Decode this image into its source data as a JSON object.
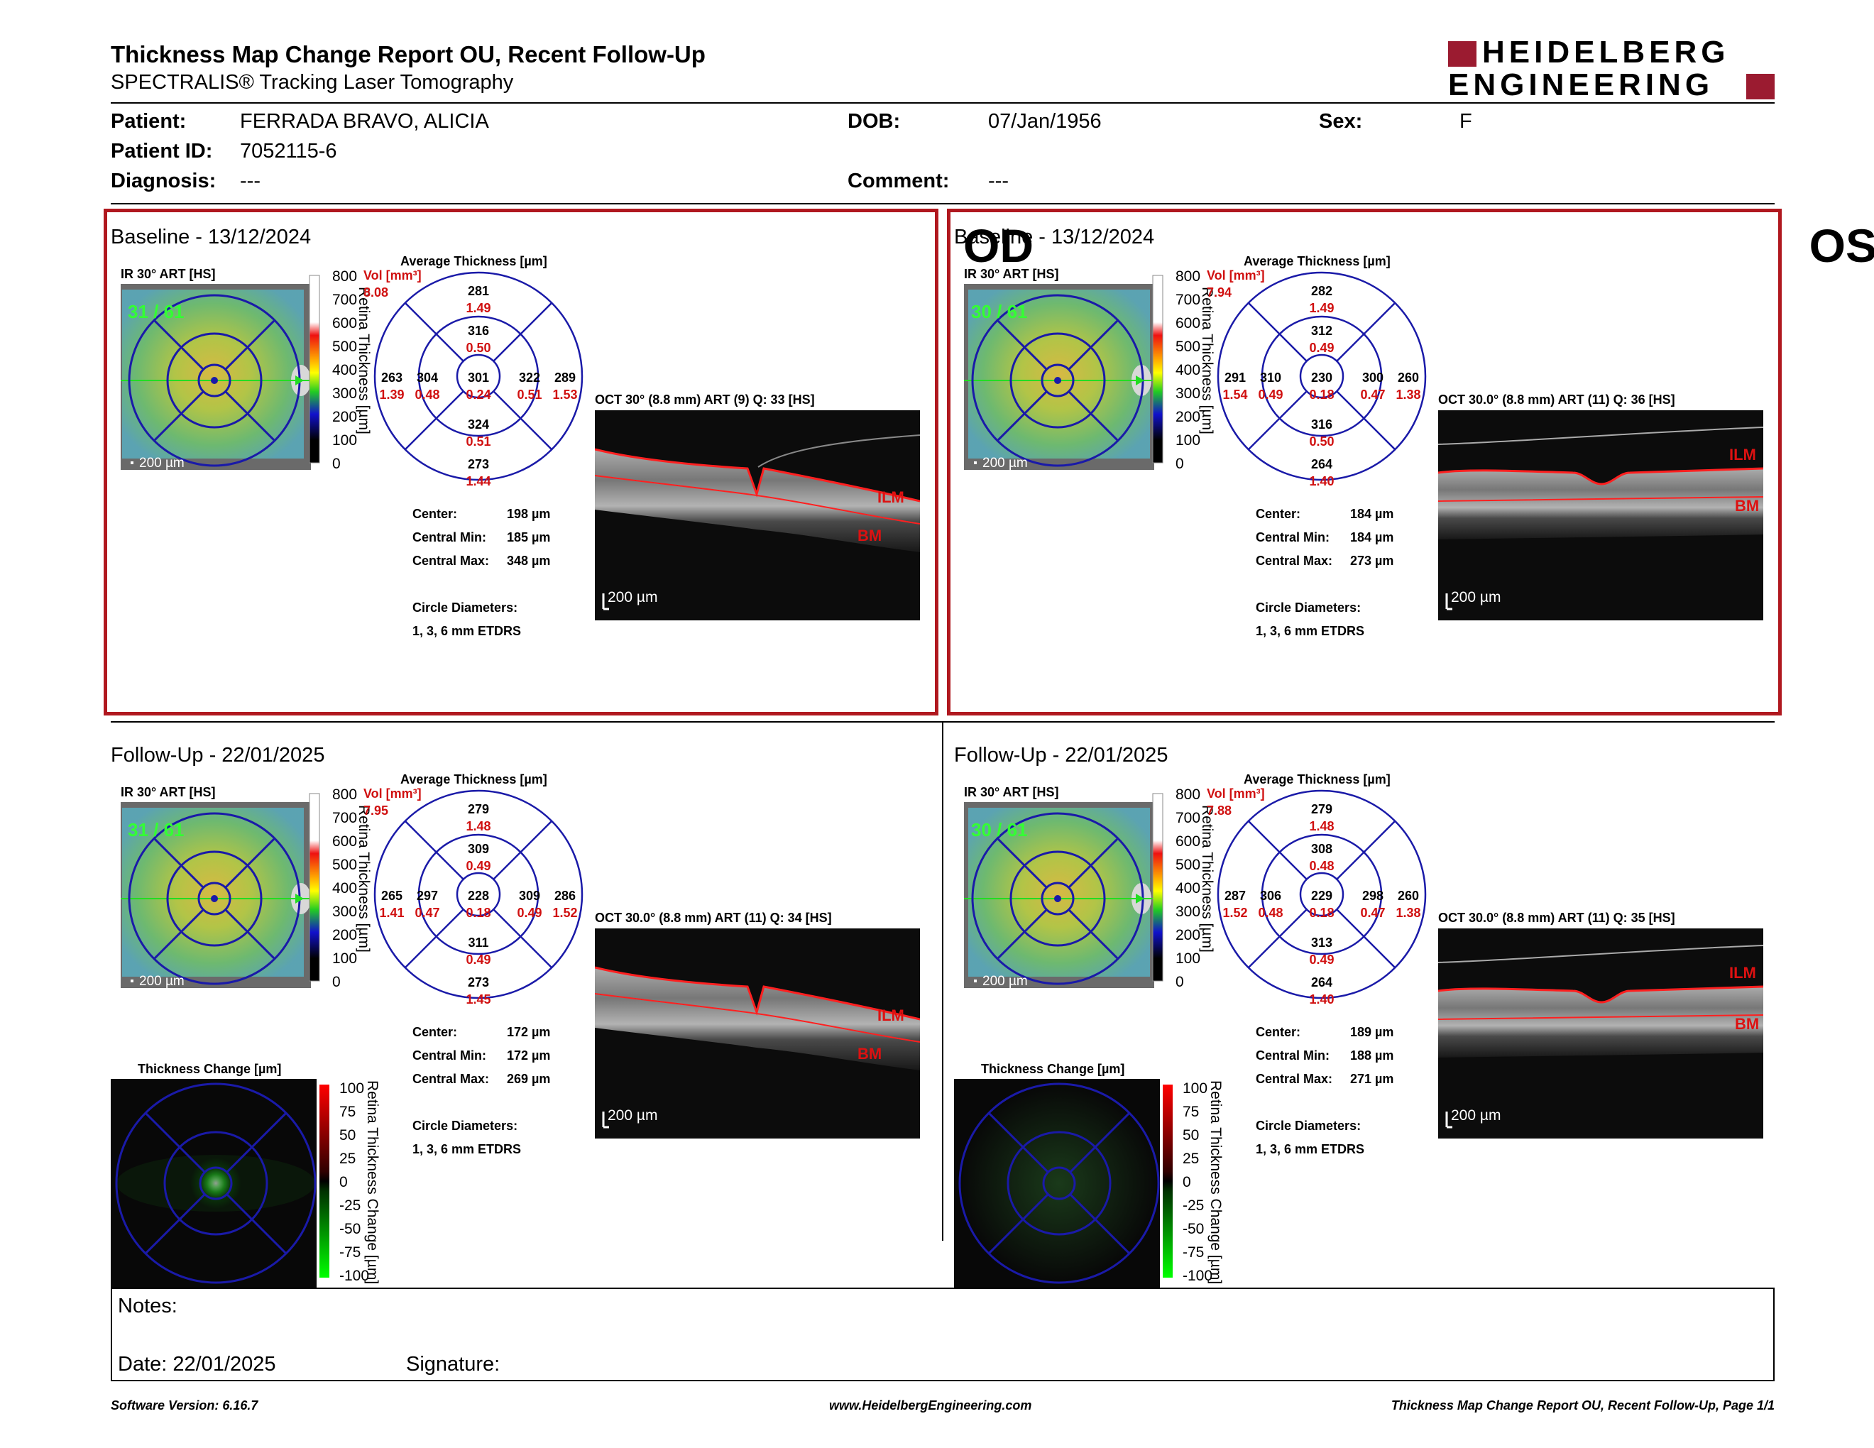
{
  "header": {
    "title": "Thickness Map Change Report OU, Recent Follow-Up",
    "subtitle": "SPECTRALIS® Tracking Laser Tomography",
    "logo_line1": "HEIDELBERG",
    "logo_line2": "ENGINEERING"
  },
  "patient": {
    "patient_label": "Patient:",
    "patient_value": "FERRADA BRAVO, ALICIA",
    "id_label": "Patient ID:",
    "id_value": "7052115-6",
    "diag_label": "Diagnosis:",
    "diag_value": "---",
    "dob_label": "DOB:",
    "dob_value": "07/Jan/1956",
    "comment_label": "Comment:",
    "comment_value": "---",
    "sex_label": "Sex:",
    "sex_value": "F"
  },
  "common": {
    "ir_label": "IR 30° ART [HS]",
    "avg_title": "Average Thickness [µm]",
    "vol_label": "Vol [mm³]",
    "scale_200": "200 µm",
    "scale_ticks": [
      "800",
      "700",
      "600",
      "500",
      "400",
      "300",
      "200",
      "100",
      "0"
    ],
    "scale_title": "Retina Thickness [µm]",
    "center_label": "Center:",
    "cmin_label": "Central Min:",
    "cmax_label": "Central Max:",
    "circle_label": "Circle Diameters:",
    "circle_value": "1, 3, 6 mm ETDRS",
    "ilm": "ILM",
    "bm": "BM",
    "tc_title": "Thickness Change [µm]",
    "tc_ticks": [
      "100",
      "75",
      "50",
      "25",
      "0",
      "-25",
      "-50",
      "-75",
      "-100"
    ],
    "tc_scale_title": "Retina Thickness Change [µm]"
  },
  "panels": {
    "od_base": {
      "section": "Baseline - 13/12/2024",
      "eye": "OD",
      "ir_counter": "31 / 61",
      "oct_label": "OCT 30° (8.8 mm) ART (9) Q: 33 [HS]",
      "vol": "8.08",
      "sectors": {
        "outer_sup": [
          "281",
          "1.49"
        ],
        "inner_sup": [
          "316",
          "0.50"
        ],
        "center": [
          "301",
          "0.24"
        ],
        "inner_inf": [
          "324",
          "0.51"
        ],
        "outer_inf": [
          "273",
          "1.44"
        ],
        "outer_left": [
          "263",
          "1.39"
        ],
        "inner_left": [
          "304",
          "0.48"
        ],
        "inner_right": [
          "322",
          "0.51"
        ],
        "outer_right": [
          "289",
          "1.53"
        ]
      },
      "center": "198 µm",
      "cmin": "185 µm",
      "cmax": "348 µm"
    },
    "os_base": {
      "section": "Baseline - 13/12/2024",
      "eye": "OS",
      "ir_counter": "30 / 61",
      "oct_label": "OCT 30.0° (8.8 mm) ART (11) Q: 36 [HS]",
      "vol": "7.94",
      "sectors": {
        "outer_sup": [
          "282",
          "1.49"
        ],
        "inner_sup": [
          "312",
          "0.49"
        ],
        "center": [
          "230",
          "0.18"
        ],
        "inner_inf": [
          "316",
          "0.50"
        ],
        "outer_inf": [
          "264",
          "1.40"
        ],
        "outer_left": [
          "291",
          "1.54"
        ],
        "inner_left": [
          "310",
          "0.49"
        ],
        "inner_right": [
          "300",
          "0.47"
        ],
        "outer_right": [
          "260",
          "1.38"
        ]
      },
      "center": "184 µm",
      "cmin": "184 µm",
      "cmax": "273 µm"
    },
    "od_fu": {
      "section": "Follow-Up - 22/01/2025",
      "ir_counter": "31 / 61",
      "oct_label": "OCT 30.0° (8.8 mm) ART (11) Q: 34 [HS]",
      "vol": "7.95",
      "sectors": {
        "outer_sup": [
          "279",
          "1.48"
        ],
        "inner_sup": [
          "309",
          "0.49"
        ],
        "center": [
          "228",
          "0.18"
        ],
        "inner_inf": [
          "311",
          "0.49"
        ],
        "outer_inf": [
          "273",
          "1.45"
        ],
        "outer_left": [
          "265",
          "1.41"
        ],
        "inner_left": [
          "297",
          "0.47"
        ],
        "inner_right": [
          "309",
          "0.49"
        ],
        "outer_right": [
          "286",
          "1.52"
        ]
      },
      "center": "172 µm",
      "cmin": "172 µm",
      "cmax": "269 µm"
    },
    "os_fu": {
      "section": "Follow-Up - 22/01/2025",
      "ir_counter": "30 / 61",
      "oct_label": "OCT 30.0° (8.8 mm) ART (11) Q: 35 [HS]",
      "vol": "7.88",
      "sectors": {
        "outer_sup": [
          "279",
          "1.48"
        ],
        "inner_sup": [
          "308",
          "0.48"
        ],
        "center": [
          "229",
          "0.18"
        ],
        "inner_inf": [
          "313",
          "0.49"
        ],
        "outer_inf": [
          "264",
          "1.40"
        ],
        "outer_left": [
          "287",
          "1.52"
        ],
        "inner_left": [
          "306",
          "0.48"
        ],
        "inner_right": [
          "298",
          "0.47"
        ],
        "outer_right": [
          "260",
          "1.38"
        ]
      },
      "center": "189 µm",
      "cmin": "188 µm",
      "cmax": "271 µm"
    }
  },
  "notes": {
    "notes_label": "Notes:",
    "date_label": "Date: 22/01/2025",
    "signature_label": "Signature:"
  },
  "footer": {
    "version": "Software Version: 6.16.7",
    "url": "www.HeidelbergEngineering.com",
    "page": "Thickness Map Change Report OU, Recent Follow-Up, Page 1/1"
  },
  "colors": {
    "frame": "#b0181f",
    "circle": "#1a1aa8",
    "value_red": "#d01010",
    "logo": "#9b1b30"
  }
}
